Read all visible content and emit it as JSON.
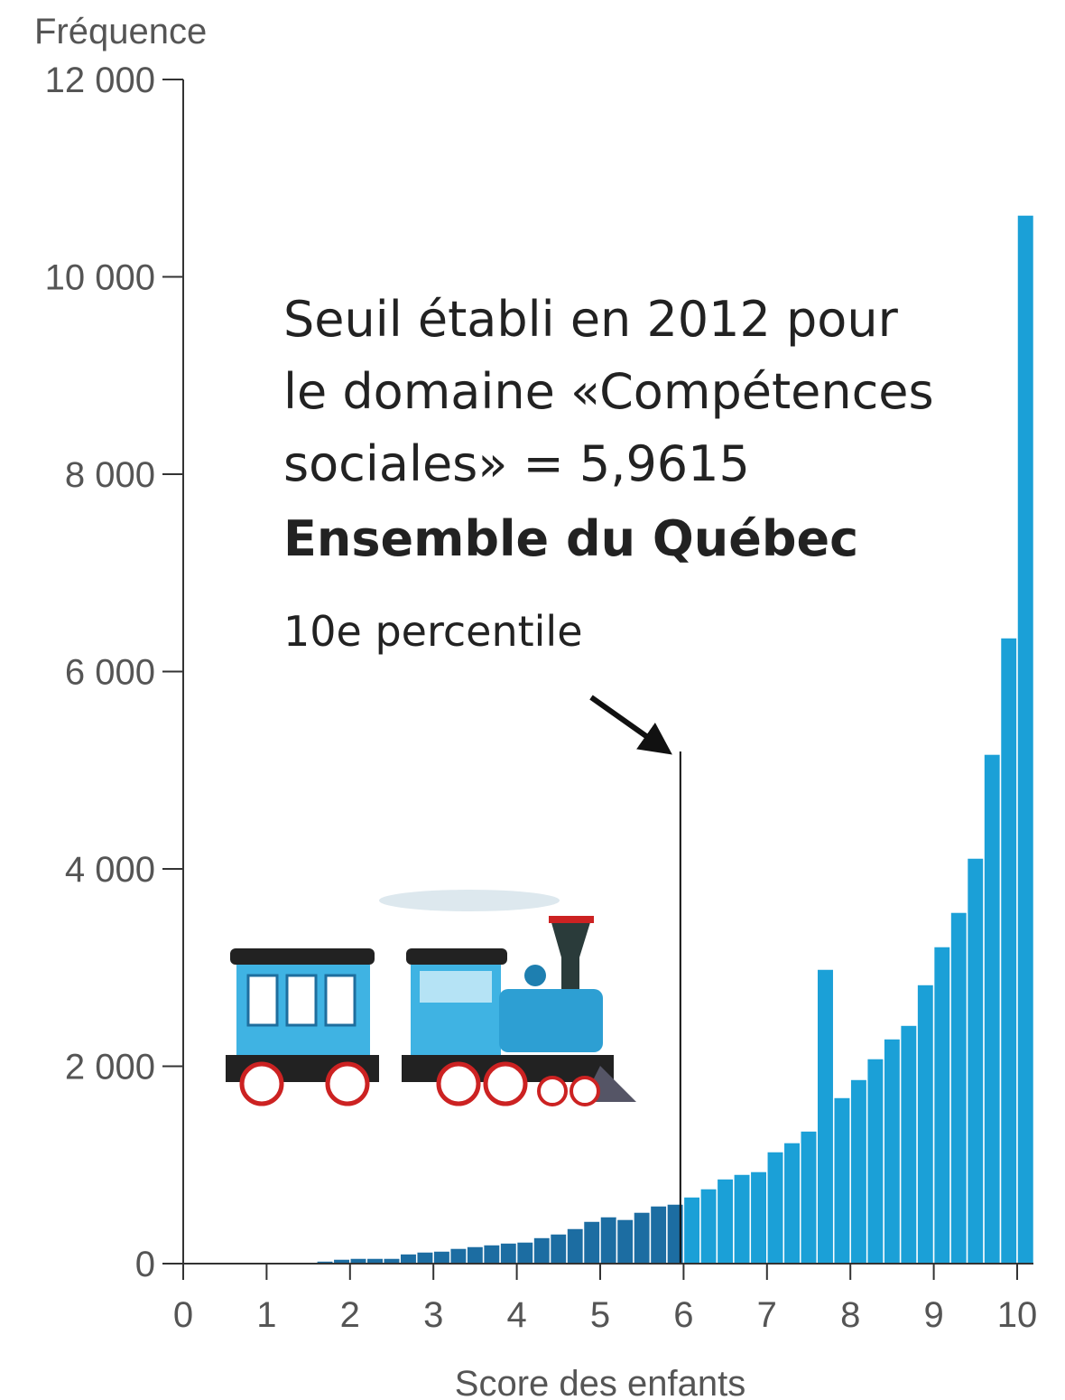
{
  "chart_data": {
    "type": "histogram",
    "ylabel": "Fréquence",
    "xlabel": "Score des enfants",
    "annotation_lines": [
      "Seuil établi en 2012 pour",
      "le domaine «Compétences",
      "sociales» = 5,9615"
    ],
    "annotation_bold": "Ensemble du Québec",
    "annotation_arrow": "10e percentile",
    "threshold": 5.9615,
    "bins": [
      1.6,
      1.8,
      2.0,
      2.2,
      2.4,
      2.6,
      2.8,
      3.0,
      3.2,
      3.4,
      3.6,
      3.8,
      4.0,
      4.2,
      4.4,
      4.6,
      4.8,
      5.0,
      5.2,
      5.4,
      5.6,
      5.8,
      6.0,
      6.2,
      6.4,
      6.6,
      6.8,
      7.0,
      7.2,
      7.4,
      7.6,
      7.8,
      8.0,
      8.2,
      8.4,
      8.6,
      8.8,
      9.0,
      9.2,
      9.4,
      9.6,
      9.8,
      10.0,
      10.2
    ],
    "values": [
      27,
      46,
      55,
      55,
      55,
      100,
      119,
      128,
      156,
      174,
      192,
      210,
      220,
      265,
      302,
      357,
      430,
      476,
      449,
      522,
      586,
      604,
      677,
      760,
      860,
      906,
      934,
      1135,
      1227,
      1345,
      2984,
      1684,
      1867,
      2078,
      2279,
      2416,
      2828,
      3213,
      3561,
      4110,
      5163,
      6343,
      10627
    ],
    "color": "#1ba0d7",
    "color_below_threshold": "#1c6da2",
    "xlim": [
      0,
      10.2
    ],
    "xticks": [
      0,
      1,
      2,
      3,
      4,
      5,
      6,
      7,
      8,
      9,
      10
    ],
    "ylim": [
      0,
      12000
    ],
    "yticks": [
      0,
      {
        "value": 2000,
        "label": "2 000"
      },
      {
        "value": 4000,
        "label": "4 000"
      },
      {
        "value": 6000,
        "label": "6 000"
      },
      {
        "value": 8000,
        "label": "8 000"
      },
      {
        "value": 10000,
        "label": "10 000"
      },
      {
        "value": 12000,
        "label": "12 000"
      }
    ]
  }
}
